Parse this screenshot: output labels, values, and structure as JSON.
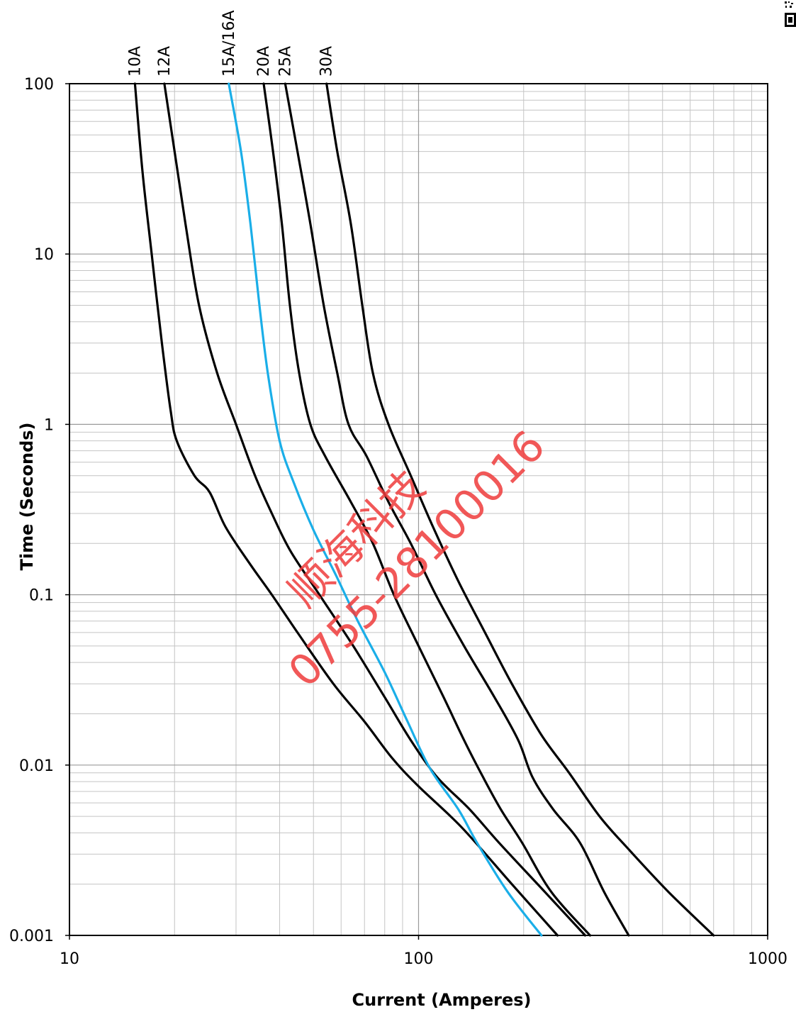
{
  "chart_data": {
    "type": "line",
    "title": "",
    "xlabel": "Current  (Amperes)",
    "ylabel": "Time (Seconds)",
    "xscale": "log",
    "yscale": "log",
    "xlim": [
      10,
      1000
    ],
    "ylim": [
      0.001,
      100
    ],
    "x_ticks": [
      "10",
      "100",
      "1000"
    ],
    "y_ticks": [
      "100",
      "10",
      "1",
      "0.1",
      "0.01",
      "0.001"
    ],
    "grid": true,
    "series": [
      {
        "name": "10A",
        "color": "#000000",
        "points": [
          [
            15.4,
            100
          ],
          [
            16.2,
            30
          ],
          [
            17.2,
            10
          ],
          [
            18.4,
            3
          ],
          [
            19.5,
            1.2
          ],
          [
            20.3,
            0.8
          ],
          [
            22.8,
            0.5
          ],
          [
            25.2,
            0.4
          ],
          [
            28,
            0.25
          ],
          [
            33,
            0.15
          ],
          [
            38,
            0.1
          ],
          [
            45,
            0.06
          ],
          [
            57,
            0.03
          ],
          [
            70,
            0.018
          ],
          [
            84,
            0.011
          ],
          [
            100,
            0.0075
          ],
          [
            133,
            0.0043
          ],
          [
            185,
            0.002
          ],
          [
            250,
            0.001
          ]
        ]
      },
      {
        "name": "12A",
        "color": "#000000",
        "points": [
          [
            18.7,
            100
          ],
          [
            20,
            40
          ],
          [
            21.5,
            15
          ],
          [
            23.5,
            5
          ],
          [
            26.5,
            2
          ],
          [
            30,
            1
          ],
          [
            34,
            0.5
          ],
          [
            38,
            0.3
          ],
          [
            43,
            0.18
          ],
          [
            52,
            0.1
          ],
          [
            65,
            0.05
          ],
          [
            80,
            0.025
          ],
          [
            95,
            0.014
          ],
          [
            113,
            0.0085
          ],
          [
            140,
            0.0055
          ],
          [
            170,
            0.0035
          ],
          [
            230,
            0.0018
          ],
          [
            300,
            0.001
          ]
        ]
      },
      {
        "name": "15A/16A",
        "color": "#1aaee8",
        "points": [
          [
            28.6,
            100
          ],
          [
            31,
            40
          ],
          [
            33,
            15
          ],
          [
            35,
            5
          ],
          [
            37,
            2
          ],
          [
            40,
            0.8
          ],
          [
            44,
            0.45
          ],
          [
            50,
            0.24
          ],
          [
            58,
            0.13
          ],
          [
            67,
            0.07
          ],
          [
            80,
            0.035
          ],
          [
            93,
            0.018
          ],
          [
            108,
            0.0095
          ],
          [
            130,
            0.0055
          ],
          [
            147,
            0.0035
          ],
          [
            180,
            0.0018
          ],
          [
            225,
            0.001
          ]
        ]
      },
      {
        "name": "20A",
        "color": "#000000",
        "points": [
          [
            36,
            100
          ],
          [
            38.3,
            40
          ],
          [
            40.6,
            15
          ],
          [
            42.8,
            5
          ],
          [
            45.5,
            2
          ],
          [
            49,
            1
          ],
          [
            54,
            0.65
          ],
          [
            64,
            0.35
          ],
          [
            74,
            0.2
          ],
          [
            85,
            0.1
          ],
          [
            100,
            0.05
          ],
          [
            118,
            0.025
          ],
          [
            135,
            0.014
          ],
          [
            153,
            0.0085
          ],
          [
            172,
            0.0055
          ],
          [
            198,
            0.0035
          ],
          [
            240,
            0.0018
          ],
          [
            310,
            0.001
          ]
        ]
      },
      {
        "name": "25A",
        "color": "#000000",
        "points": [
          [
            41.5,
            100
          ],
          [
            45,
            40
          ],
          [
            49,
            15
          ],
          [
            53.5,
            5
          ],
          [
            58.5,
            2
          ],
          [
            63,
            1
          ],
          [
            71,
            0.65
          ],
          [
            82,
            0.35
          ],
          [
            95,
            0.2
          ],
          [
            112,
            0.1
          ],
          [
            135,
            0.05
          ],
          [
            165,
            0.025
          ],
          [
            193,
            0.014
          ],
          [
            212,
            0.0085
          ],
          [
            243,
            0.0055
          ],
          [
            290,
            0.0035
          ],
          [
            340,
            0.0018
          ],
          [
            400,
            0.001
          ]
        ]
      },
      {
        "name": "30A",
        "color": "#000000",
        "points": [
          [
            54.5,
            100
          ],
          [
            58.5,
            40
          ],
          [
            64,
            15
          ],
          [
            69,
            5
          ],
          [
            74,
            2
          ],
          [
            82,
            1
          ],
          [
            95,
            0.5
          ],
          [
            110,
            0.25
          ],
          [
            130,
            0.12
          ],
          [
            155,
            0.06
          ],
          [
            185,
            0.03
          ],
          [
            225,
            0.015
          ],
          [
            270,
            0.009
          ],
          [
            330,
            0.005
          ],
          [
            400,
            0.0032
          ],
          [
            520,
            0.0018
          ],
          [
            700,
            0.001
          ]
        ]
      }
    ]
  },
  "watermark": {
    "line1": "顺海科技",
    "line2": "0755-28100016",
    "color": "#ef3b3b"
  }
}
